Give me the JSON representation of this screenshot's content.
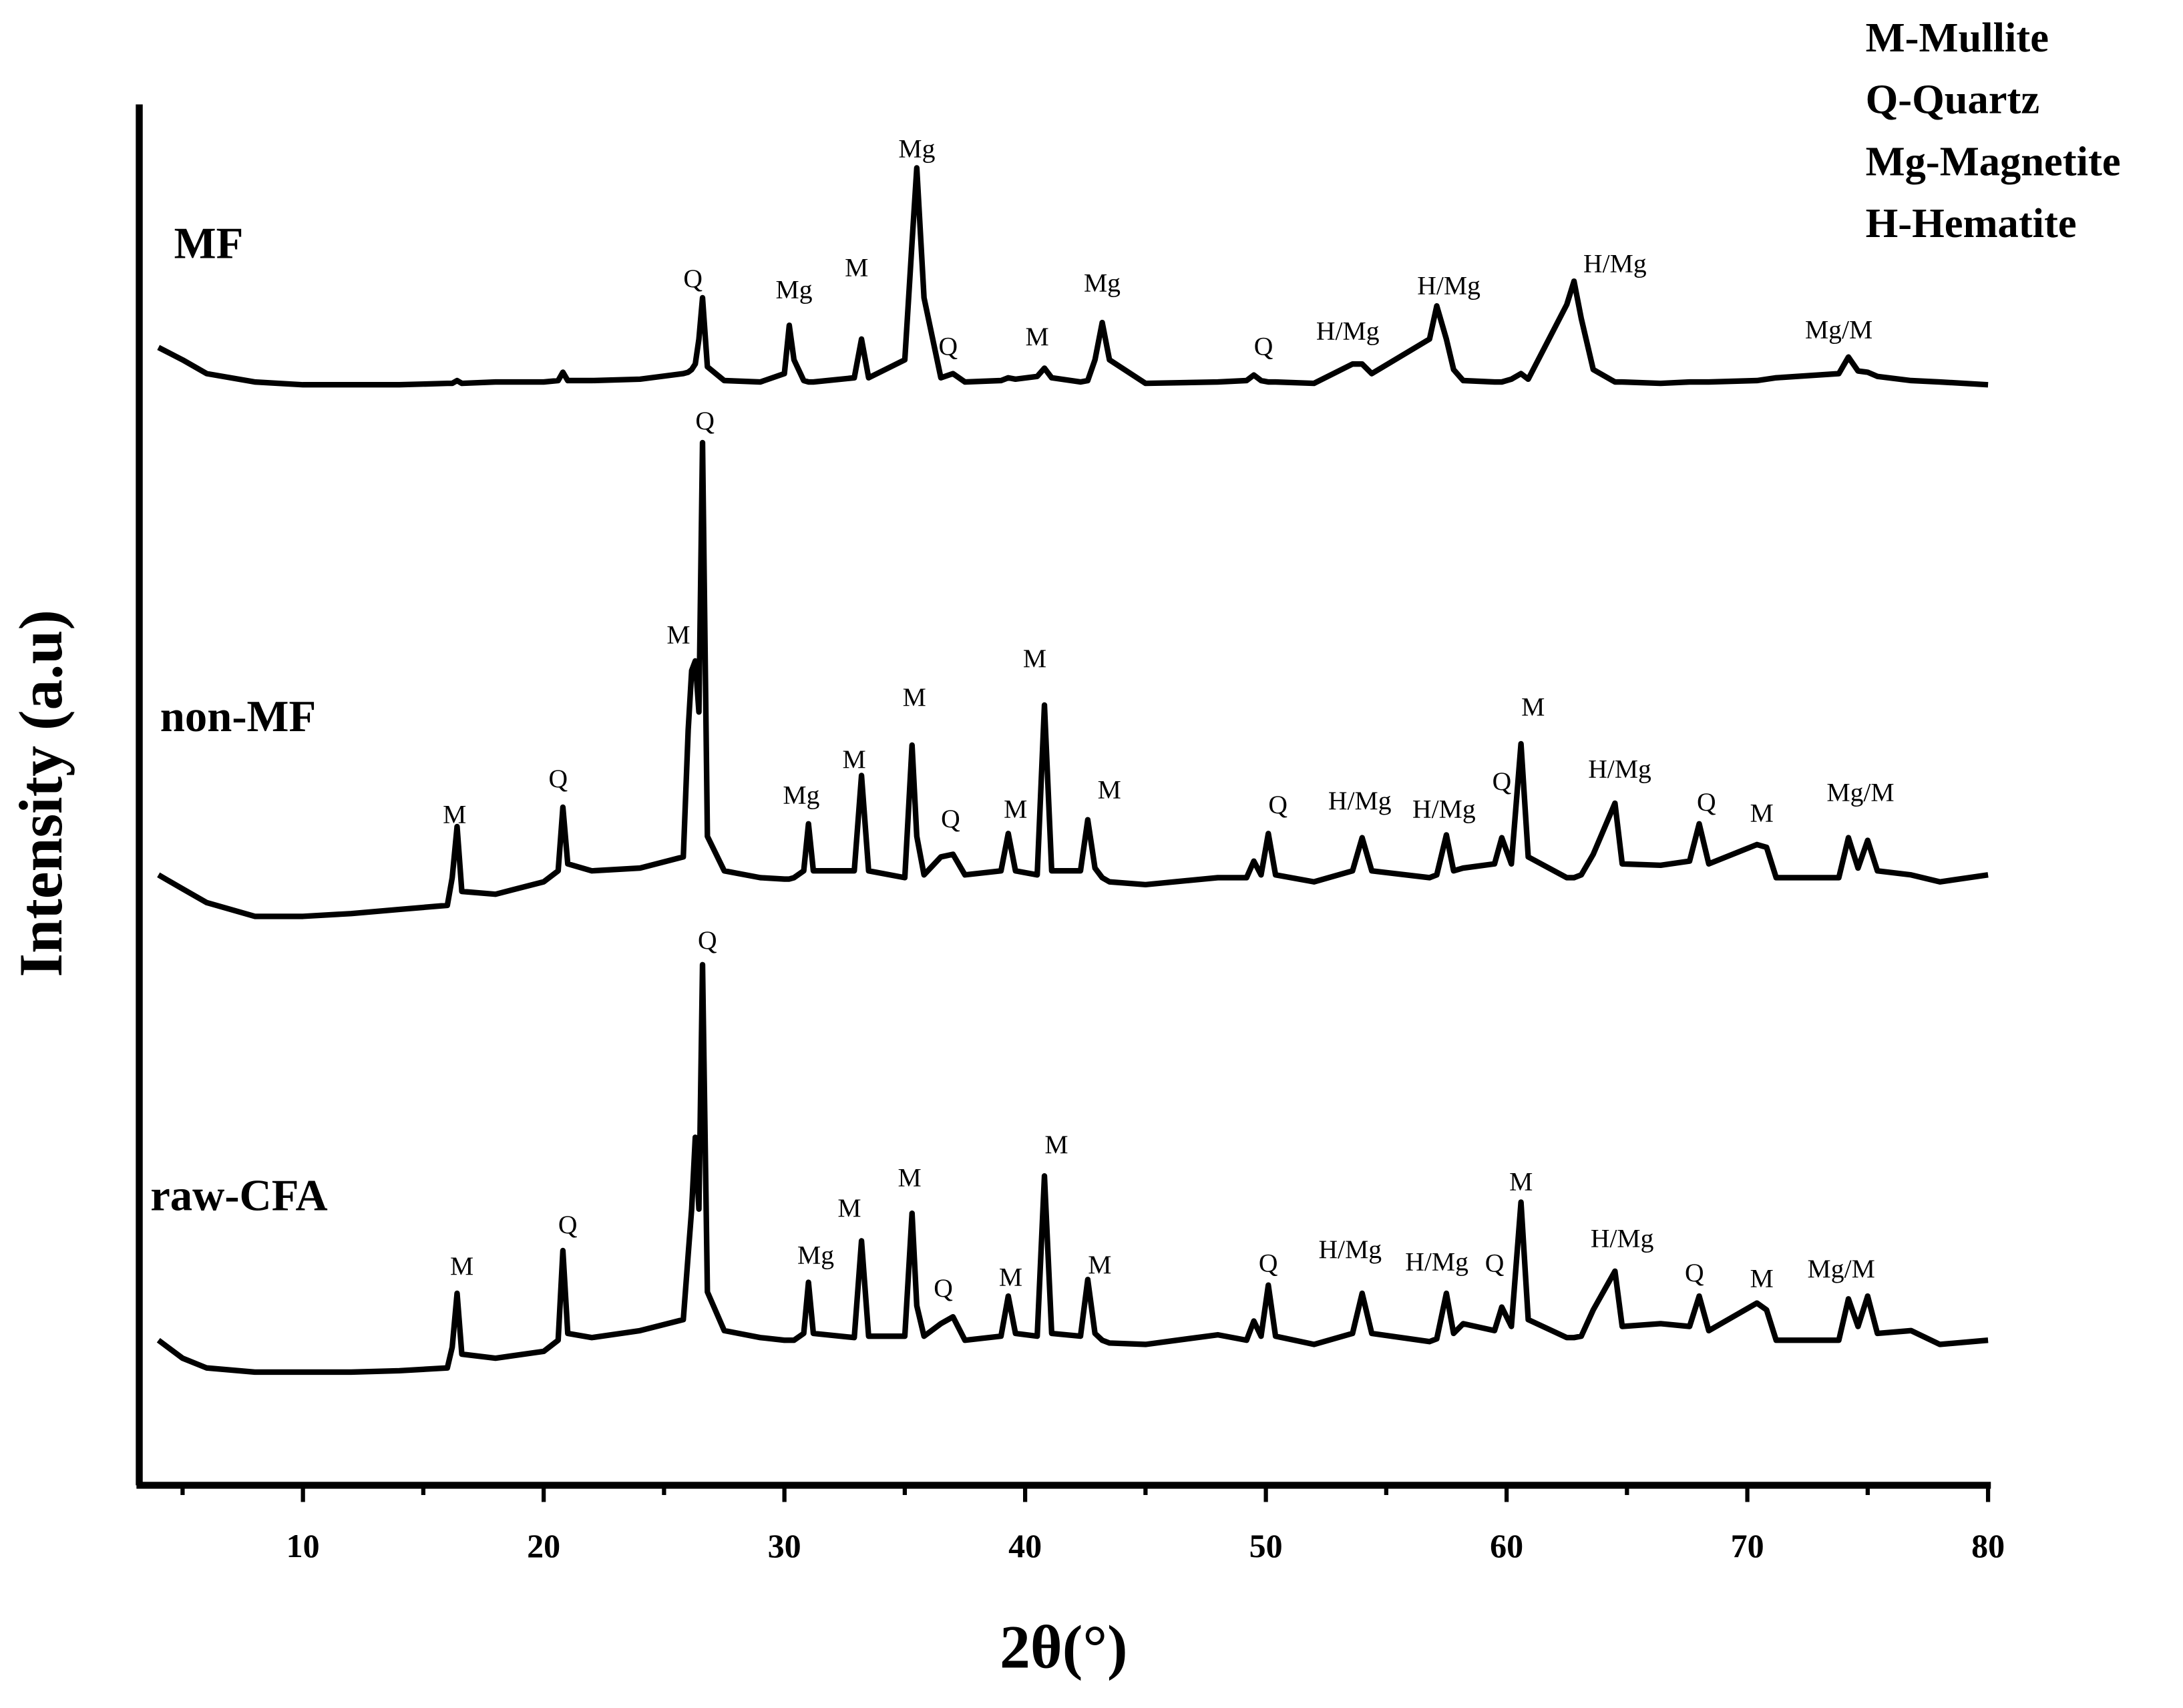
{
  "chart_data": {
    "type": "line",
    "x_label": "2θ(°)",
    "y_label": "Intensity (a.u)",
    "legend_text": [
      "M-Mullite",
      "Q-Quartz",
      "Mg-Magnetite",
      "H-Hematite"
    ],
    "xlim": [
      3.2,
      80
    ],
    "xticks": [
      10,
      20,
      30,
      40,
      50,
      60,
      70,
      80
    ],
    "xminorticks": [
      5,
      15,
      25,
      35,
      45,
      55,
      65,
      75
    ],
    "ylim": [
      0,
      1000
    ],
    "x": [
      4,
      5,
      6,
      8,
      10,
      12,
      14,
      16,
      16.2,
      16.4,
      16.6,
      18,
      20,
      20.6,
      20.8,
      21,
      22,
      24,
      25.8,
      26,
      26.15,
      26.3,
      26.45,
      26.6,
      26.8,
      27.5,
      29,
      30,
      30.2,
      30.4,
      30.8,
      31,
      31.2,
      32.9,
      33.2,
      33.5,
      35,
      35.3,
      35.5,
      35.8,
      36.5,
      37,
      37.5,
      39,
      39.3,
      39.6,
      40.5,
      40.8,
      41.1,
      42.3,
      42.6,
      42.9,
      43.2,
      43.5,
      45,
      48,
      49.2,
      49.5,
      49.8,
      50.1,
      50.4,
      52,
      53.6,
      54,
      54.4,
      56.8,
      57.1,
      57.5,
      57.8,
      58.2,
      59.5,
      59.8,
      60.2,
      60.6,
      60.9,
      62.5,
      62.8,
      63.1,
      63.6,
      64.5,
      64.8,
      66.4,
      67.6,
      68,
      68.4,
      70.4,
      70.8,
      71.2,
      73.8,
      74.2,
      74.6,
      75,
      75.4,
      76.8,
      78,
      80
    ],
    "series": [
      {
        "name": "MF",
        "color": "#000000",
        "values": [
          824,
          815,
          805,
          799,
          797,
          797,
          797,
          798,
          798,
          800,
          798,
          799,
          799,
          800,
          806,
          800,
          800,
          801,
          805,
          806,
          808,
          812,
          830,
          860,
          810,
          800,
          799,
          805,
          840,
          815,
          800,
          799,
          799,
          802,
          830,
          802,
          815,
          900,
          954,
          860,
          802,
          805,
          799,
          800,
          802,
          801,
          803,
          809,
          802,
          799,
          800,
          815,
          842,
          815,
          798,
          799,
          800,
          804,
          800,
          799,
          799,
          798,
          812,
          812,
          805,
          830,
          854,
          830,
          808,
          800,
          799,
          799,
          801,
          805,
          801,
          855,
          872,
          845,
          808,
          799,
          799,
          798,
          799,
          799,
          799,
          800,
          801,
          802,
          805,
          817,
          807,
          806,
          803,
          800,
          799,
          797
        ]
      },
      {
        "name": "non-MF",
        "color": "#000000",
        "values": [
          442,
          432,
          422,
          412,
          412,
          414,
          417,
          420,
          440,
          477,
          430,
          428,
          437,
          445,
          491,
          450,
          445,
          447,
          455,
          547,
          590,
          597,
          560,
          755,
          470,
          445,
          440,
          439,
          439,
          440,
          445,
          479,
          445,
          445,
          514,
          445,
          440,
          536,
          470,
          442,
          455,
          457,
          442,
          445,
          472,
          445,
          442,
          565,
          445,
          445,
          482,
          447,
          440,
          437,
          435,
          440,
          440,
          452,
          442,
          472,
          442,
          437,
          445,
          469,
          445,
          440,
          442,
          471,
          445,
          447,
          450,
          469,
          450,
          537,
          455,
          440,
          440,
          442,
          457,
          494,
          450,
          449,
          452,
          479,
          450,
          464,
          462,
          440,
          440,
          469,
          447,
          467,
          445,
          442,
          437,
          442
        ]
      },
      {
        "name": "raw-CFA",
        "color": "#000000",
        "values": [
          105,
          92,
          85,
          82,
          82,
          82,
          83,
          85,
          100,
          139,
          95,
          92,
          97,
          105,
          170,
          110,
          107,
          112,
          120,
          167,
          200,
          252,
          200,
          377,
          140,
          112,
          107,
          105,
          105,
          105,
          110,
          147,
          110,
          107,
          177,
          108,
          108,
          197,
          130,
          108,
          117,
          122,
          105,
          108,
          137,
          110,
          108,
          224,
          110,
          108,
          149,
          110,
          105,
          103,
          102,
          109,
          105,
          119,
          108,
          145,
          108,
          102,
          110,
          139,
          110,
          104,
          106,
          139,
          110,
          117,
          112,
          129,
          115,
          205,
          120,
          107,
          107,
          108,
          127,
          155,
          115,
          117,
          115,
          137,
          112,
          132,
          127,
          105,
          105,
          135,
          115,
          137,
          110,
          112,
          102,
          105
        ]
      }
    ],
    "annotations": [
      {
        "text": "Q",
        "x": 26.2,
        "y": 872
      },
      {
        "text": "Mg",
        "x": 30.4,
        "y": 864
      },
      {
        "text": "M",
        "x": 33.0,
        "y": 880
      },
      {
        "text": "Mg",
        "x": 35.5,
        "y": 966
      },
      {
        "text": "Q",
        "x": 36.8,
        "y": 823
      },
      {
        "text": "M",
        "x": 40.5,
        "y": 830
      },
      {
        "text": "Mg",
        "x": 43.2,
        "y": 869
      },
      {
        "text": "Q",
        "x": 49.9,
        "y": 823
      },
      {
        "text": "H/Mg",
        "x": 53.4,
        "y": 834
      },
      {
        "text": "H/Mg",
        "x": 57.6,
        "y": 867
      },
      {
        "text": "H/Mg",
        "x": 64.5,
        "y": 883
      },
      {
        "text": "Mg/M",
        "x": 73.8,
        "y": 835
      },
      {
        "text": "M",
        "x": 16.3,
        "y": 484
      },
      {
        "text": "Q",
        "x": 20.6,
        "y": 510
      },
      {
        "text": "M",
        "x": 25.6,
        "y": 614
      },
      {
        "text": "Q",
        "x": 26.7,
        "y": 769
      },
      {
        "text": "Mg",
        "x": 30.7,
        "y": 498
      },
      {
        "text": "M",
        "x": 32.9,
        "y": 524
      },
      {
        "text": "M",
        "x": 35.4,
        "y": 569
      },
      {
        "text": "Q",
        "x": 36.9,
        "y": 481
      },
      {
        "text": "M",
        "x": 39.6,
        "y": 488
      },
      {
        "text": "M",
        "x": 40.4,
        "y": 597
      },
      {
        "text": "M",
        "x": 43.5,
        "y": 502
      },
      {
        "text": "Q",
        "x": 50.5,
        "y": 491
      },
      {
        "text": "H/Mg",
        "x": 53.9,
        "y": 494
      },
      {
        "text": "H/Mg",
        "x": 57.4,
        "y": 488
      },
      {
        "text": "Q",
        "x": 59.8,
        "y": 508
      },
      {
        "text": "M",
        "x": 61.1,
        "y": 562
      },
      {
        "text": "H/Mg",
        "x": 64.7,
        "y": 517
      },
      {
        "text": "Q",
        "x": 68.3,
        "y": 493
      },
      {
        "text": "M",
        "x": 70.6,
        "y": 485
      },
      {
        "text": "Mg/M",
        "x": 74.7,
        "y": 500
      },
      {
        "text": "M",
        "x": 16.6,
        "y": 157
      },
      {
        "text": "Q",
        "x": 21.0,
        "y": 187
      },
      {
        "text": "Q",
        "x": 26.8,
        "y": 393
      },
      {
        "text": "Mg",
        "x": 31.3,
        "y": 165
      },
      {
        "text": "M",
        "x": 32.7,
        "y": 199
      },
      {
        "text": "M",
        "x": 35.2,
        "y": 221
      },
      {
        "text": "Q",
        "x": 36.6,
        "y": 141
      },
      {
        "text": "M",
        "x": 39.4,
        "y": 149
      },
      {
        "text": "M",
        "x": 41.3,
        "y": 245
      },
      {
        "text": "M",
        "x": 43.1,
        "y": 158
      },
      {
        "text": "Q",
        "x": 50.1,
        "y": 159
      },
      {
        "text": "H/Mg",
        "x": 53.5,
        "y": 169
      },
      {
        "text": "H/Mg",
        "x": 57.1,
        "y": 160
      },
      {
        "text": "Q",
        "x": 59.5,
        "y": 159
      },
      {
        "text": "M",
        "x": 60.6,
        "y": 218
      },
      {
        "text": "H/Mg",
        "x": 64.8,
        "y": 177
      },
      {
        "text": "Q",
        "x": 67.8,
        "y": 152
      },
      {
        "text": "M",
        "x": 70.6,
        "y": 148
      },
      {
        "text": "Mg/M",
        "x": 73.9,
        "y": 155
      }
    ]
  }
}
